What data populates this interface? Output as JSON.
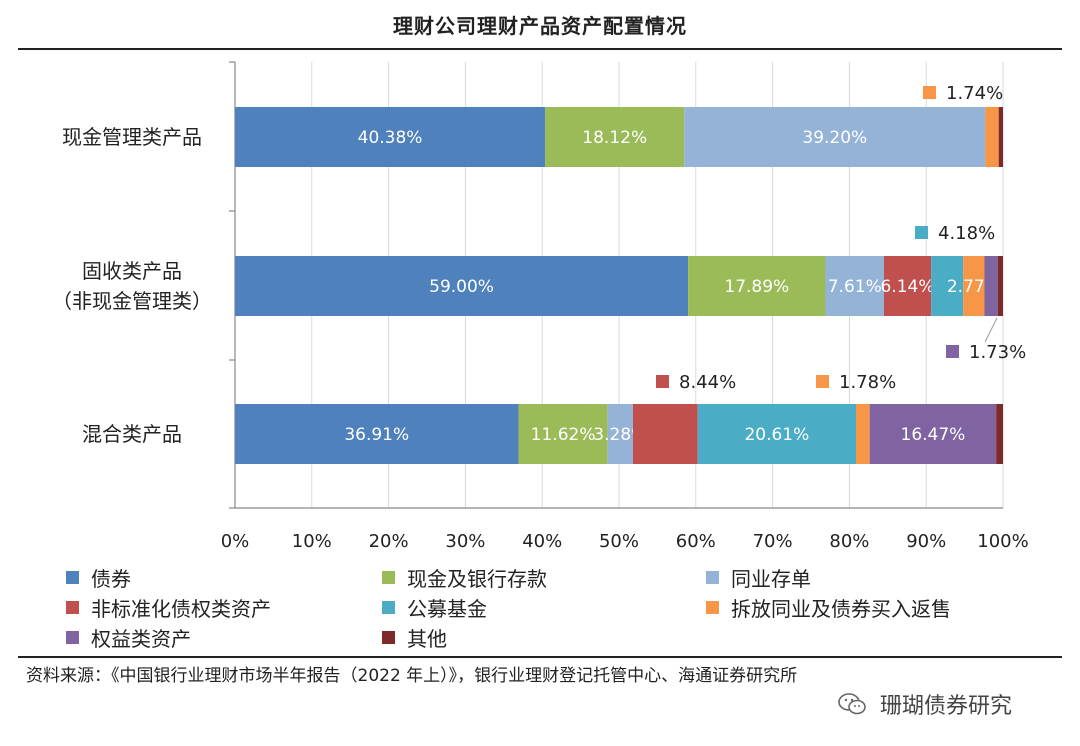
{
  "title": "理财公司理财产品资产配置情况",
  "source": "资料来源：《中国银行业理财市场半年报告（2022 年上）》，银行业理财登记托管中心、海通证券研究所",
  "watermark": "珊瑚债券研究",
  "chart_data": {
    "type": "bar",
    "orientation": "horizontal-stacked-100",
    "title": "理财公司理财产品资产配置情况",
    "categories": [
      "现金管理类产品",
      "固收类产品（非现金管理类）",
      "混合类产品"
    ],
    "category_lines": [
      [
        "现金管理类产品"
      ],
      [
        "固收类产品",
        "（非现金管理类）"
      ],
      [
        "混合类产品"
      ]
    ],
    "xlim": [
      0,
      100
    ],
    "x_ticks": [
      "0%",
      "10%",
      "20%",
      "30%",
      "40%",
      "50%",
      "60%",
      "70%",
      "80%",
      "90%",
      "100%"
    ],
    "grid": true,
    "legend_position": "bottom",
    "series": [
      {
        "name": "债券",
        "color": "#4f81bd",
        "values": [
          40.38,
          59.0,
          36.91
        ],
        "labels": [
          "40.38%",
          "59.00%",
          "36.91%"
        ]
      },
      {
        "name": "现金及银行存款",
        "color": "#9bbb59",
        "values": [
          18.12,
          17.89,
          11.62
        ],
        "labels": [
          "18.12%",
          "17.89%",
          "11.62%"
        ]
      },
      {
        "name": "同业存单",
        "color": "#95b3d7",
        "values": [
          39.2,
          7.61,
          3.28
        ],
        "labels": [
          "39.20%",
          "7.61%",
          "3.28%"
        ]
      },
      {
        "name": "非标准化债权类资产",
        "color": "#c0504d",
        "values": [
          0,
          6.14,
          8.44
        ],
        "labels": [
          "",
          "6.14%",
          "8.44%"
        ]
      },
      {
        "name": "公募基金",
        "color": "#4bacc6",
        "values": [
          0,
          4.18,
          20.61
        ],
        "labels": [
          "",
          "4.18%",
          "20.61%"
        ]
      },
      {
        "name": "拆放同业及债券买入返售",
        "color": "#f79646",
        "values": [
          1.74,
          2.77,
          1.78
        ],
        "labels": [
          "1.74%",
          "2.77%",
          "1.78%"
        ]
      },
      {
        "name": "权益类资产",
        "color": "#8064a2",
        "values": [
          0,
          1.73,
          16.47
        ],
        "labels": [
          "",
          "1.73%",
          "16.47%"
        ]
      },
      {
        "name": "其他",
        "color": "#7f2a2a",
        "values": [
          0.56,
          0.68,
          0.89
        ],
        "labels": [
          "",
          "",
          ""
        ]
      }
    ]
  }
}
